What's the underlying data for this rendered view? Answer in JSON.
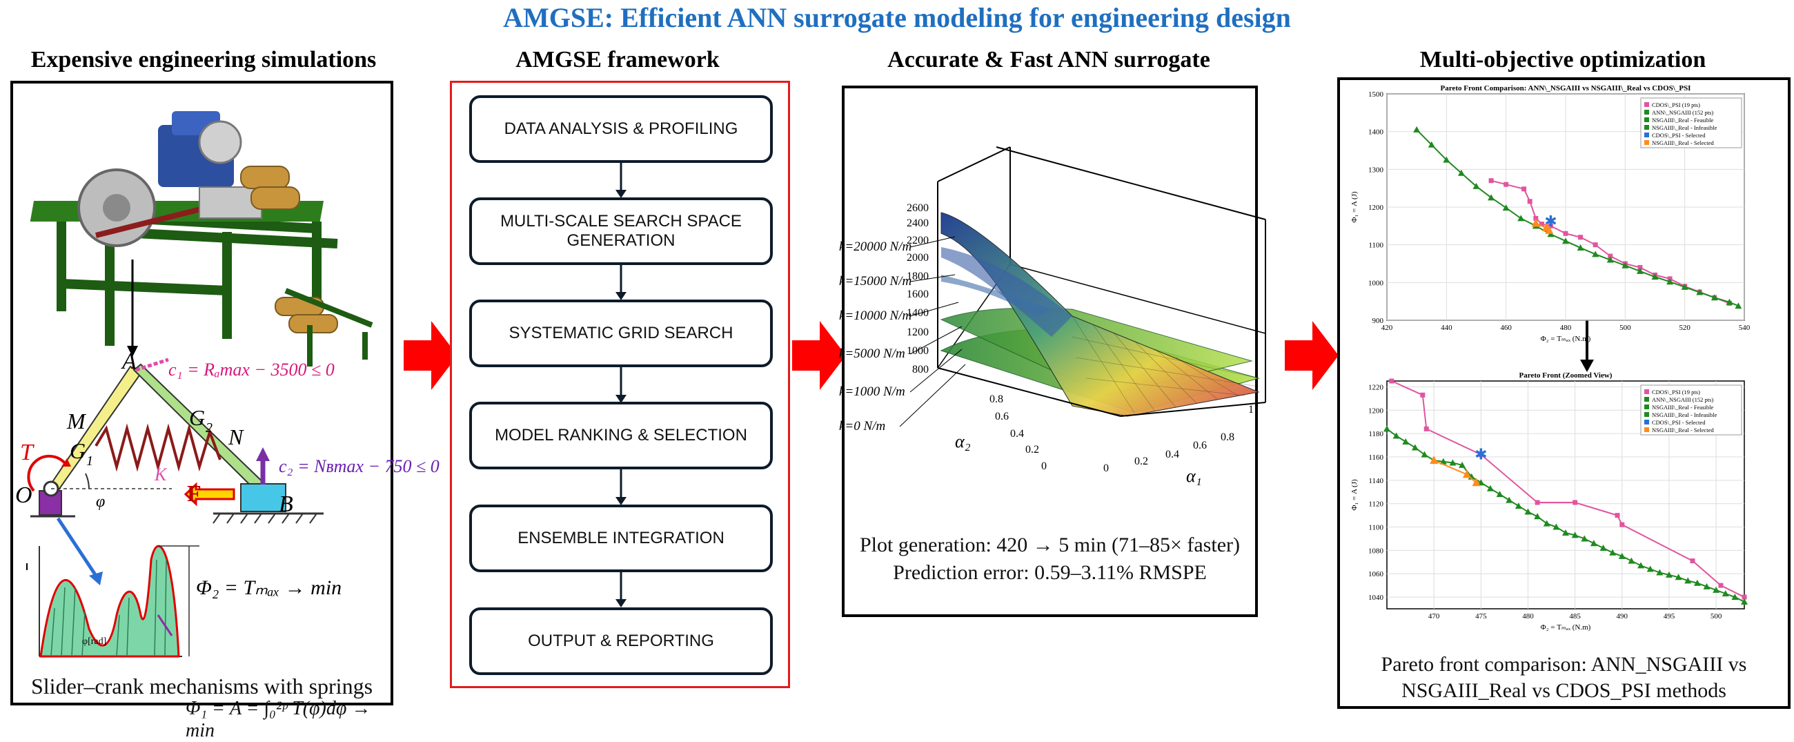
{
  "title": "AMGSE: Efficient ANN surrogate modeling for engineering design",
  "colors": {
    "title": "#1f6fc0",
    "frame": "#e31b1b",
    "arrow": "#ff0000",
    "green": "#1f8a1f",
    "pink": "#e0559e"
  },
  "panels": {
    "simulations": {
      "title": "Expensive engineering simulations",
      "caption": "Slider–crank mechanisms with springs",
      "labels": {
        "A": "A",
        "B": "B",
        "O": "O",
        "M": "M",
        "N": "N",
        "G1": "G",
        "G1_sub": "1",
        "G2": "G",
        "G2_sub": "2",
        "T": "T",
        "F": "F",
        "K": "K",
        "phi": "φ",
        "c1": "c₁ = Rₐmax − 3500 ≤ 0",
        "c2": "c₂ = Nʙmax − 750 ≤ 0",
        "phi2": "Φ₂ = Tₘₐₓ → min",
        "phi1": "Φ₁ = A = ∫₀²ᵖ T(φ)dφ → min",
        "phi_axis": "φ[rad]"
      }
    },
    "framework": {
      "title": "AMGSE framework",
      "steps": [
        "DATA ANALYSIS & PROFILING",
        "MULTI-SCALE SEARCH SPACE GENERATION",
        "SYSTEMATIC GRID SEARCH",
        "MODEL RANKING & SELECTION",
        "ENSEMBLE INTEGRATION",
        "OUTPUT & REPORTING"
      ]
    },
    "surrogate": {
      "title": "Accurate & Fast ANN surrogate",
      "caption_line1": "Plot generation: 420 → 5 min (71–85× faster)",
      "caption_line2": "Prediction error: 0.59–3.11% RMSPE",
      "k_labels": [
        "k=20000 N/m",
        "k=15000 N/m",
        "k=10000 N/m",
        "k=5000 N/m",
        "k=1000 N/m",
        "k=0 N/m"
      ],
      "z_ticks": [
        "2600",
        "2400",
        "2200",
        "2000",
        "1800",
        "1600",
        "1400",
        "1200",
        "1000",
        "800"
      ],
      "a2_ticks": [
        "0.8",
        "0.6",
        "0.4",
        "0.2",
        "0"
      ],
      "a1_ticks": [
        "0",
        "0.2",
        "0.4",
        "0.6",
        "0.8",
        "1"
      ],
      "a2_label": "α₂",
      "a1_label": "α₁"
    },
    "optimization": {
      "title": "Multi-objective optimization",
      "caption_line1": "Pareto front comparison: ANN_NSGAIII vs",
      "caption_line2": "NSGAIII_Real vs CDOS_PSI methods"
    }
  },
  "chart_data": [
    {
      "type": "scatter",
      "title": "Pareto Front Comparison: ANN\\_NSGAIII vs NSGAIII\\_Real vs CDOS\\_PSI",
      "xlabel": "Φ₂ = Tₘₐₓ (N.m)",
      "ylabel": "Φ₁ = A (J)",
      "xlim": [
        420,
        540
      ],
      "ylim": [
        900,
        1500
      ],
      "xticks": [
        420,
        440,
        460,
        480,
        500,
        520,
        540
      ],
      "yticks": [
        900,
        1000,
        1100,
        1200,
        1300,
        1400,
        1500
      ],
      "grid": true,
      "legend_position": "top-right",
      "legend": [
        "CDOS\\_PSI (19 pts)",
        "ANN\\_NSGAIII (152 pts)",
        "NSGAIII\\_Real - Feasible",
        "NSGAIII\\_Real - Infeasible",
        "CDOS\\_PSI - Selected",
        "NSGAIII\\_Real - Selected"
      ],
      "series": [
        {
          "name": "CDOS\\_PSI (19 pts)",
          "color": "#e0559e",
          "x": [
            455,
            460,
            466,
            468,
            470,
            472,
            475,
            480,
            485,
            490,
            495,
            500,
            505,
            510,
            515,
            520,
            525,
            530,
            535
          ],
          "y": [
            1270,
            1260,
            1248,
            1215,
            1170,
            1155,
            1150,
            1130,
            1120,
            1100,
            1070,
            1050,
            1040,
            1020,
            1010,
            990,
            975,
            960,
            945
          ]
        },
        {
          "name": "NSGAIII\\_Real - Feasible",
          "color": "#1f8a1f",
          "x": [
            430,
            435,
            440,
            445,
            450,
            455,
            460,
            465,
            470,
            475,
            480,
            485,
            490,
            495,
            500,
            505,
            510,
            515,
            520,
            525,
            530,
            535,
            538
          ],
          "y": [
            1405,
            1365,
            1325,
            1290,
            1255,
            1225,
            1198,
            1170,
            1150,
            1128,
            1110,
            1092,
            1075,
            1060,
            1045,
            1030,
            1015,
            1002,
            988,
            974,
            960,
            948,
            938
          ]
        },
        {
          "name": "CDOS\\_PSI - Selected",
          "color": "#2a6fd6",
          "x": [
            475
          ],
          "y": [
            1162
          ]
        },
        {
          "name": "NSGAIII\\_Real - Selected",
          "color": "#ff8c1a",
          "x": [
            470,
            473.5,
            474.5
          ],
          "y": [
            1157,
            1145,
            1138
          ]
        }
      ]
    },
    {
      "type": "scatter",
      "title": "Pareto Front (Zoomed View)",
      "xlabel": "Φ₂ = Tₘₐₓ (N.m)",
      "ylabel": "Φ₁ = A (J)",
      "xlim": [
        465,
        503
      ],
      "ylim": [
        1030,
        1225
      ],
      "xticks": [
        470,
        475,
        480,
        485,
        490,
        495,
        500
      ],
      "yticks": [
        1040,
        1060,
        1080,
        1100,
        1120,
        1140,
        1160,
        1180,
        1200,
        1220
      ],
      "grid": true,
      "legend_position": "top-right",
      "legend": [
        "CDOS\\_PSI (19 pts)",
        "ANN\\_NSGAIII (152 pts)",
        "NSGAIII\\_Real - Feasible",
        "NSGAIII\\_Real - Infeasible",
        "CDOS\\_PSI - Selected",
        "NSGAIII\\_Real - Selected"
      ],
      "series": [
        {
          "name": "CDOS\\_PSI (19 pts)",
          "color": "#e0559e",
          "x": [
            465.5,
            468.8,
            469.2,
            475,
            481,
            485,
            489.5,
            490,
            497.5,
            500.5,
            503
          ],
          "y": [
            1225,
            1213,
            1184,
            1162,
            1121,
            1121,
            1110,
            1102,
            1071,
            1050,
            1040
          ]
        },
        {
          "name": "NSGAIII\\_Real - Feasible",
          "color": "#1f8a1f",
          "x": [
            465,
            466,
            467,
            468,
            469,
            470,
            471,
            472,
            473,
            474,
            475,
            476,
            477,
            478,
            479,
            480,
            481,
            482,
            483,
            484,
            485,
            486,
            487,
            488,
            489,
            490,
            491,
            492,
            493,
            494,
            495,
            496,
            497,
            498,
            499,
            500,
            501,
            502,
            503
          ],
          "y": [
            1184,
            1178,
            1173,
            1168,
            1162,
            1157,
            1156,
            1155,
            1153,
            1143,
            1138,
            1133,
            1128,
            1123,
            1118,
            1113,
            1109,
            1103,
            1100,
            1095,
            1093,
            1090,
            1086,
            1082,
            1078,
            1075,
            1071,
            1067,
            1064,
            1061,
            1059,
            1057,
            1054,
            1052,
            1049,
            1046,
            1043,
            1040,
            1036
          ]
        },
        {
          "name": "CDOS\\_PSI - Selected",
          "color": "#2a6fd6",
          "x": [
            475
          ],
          "y": [
            1162
          ]
        },
        {
          "name": "NSGAIII\\_Real - Selected",
          "color": "#ff8c1a",
          "x": [
            470,
            473.5,
            474.5
          ],
          "y": [
            1157,
            1145,
            1138
          ]
        }
      ]
    }
  ]
}
